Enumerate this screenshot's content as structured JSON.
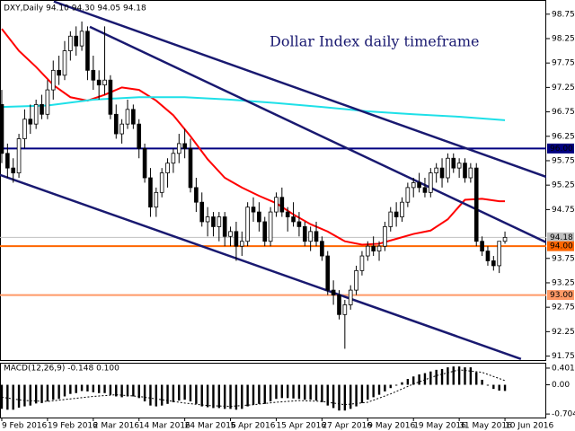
{
  "chart_data": [
    {
      "type": "candlestick",
      "title": "Dollar Index daily timeframe",
      "header": "DXY,Daily 94.10 94.30 94.05 94.18",
      "x": [
        0,
        1,
        2,
        3,
        4,
        5,
        6,
        7,
        8,
        9,
        10,
        11,
        12,
        13,
        14,
        15,
        16,
        17,
        18,
        19,
        20,
        21,
        22,
        23,
        24,
        25,
        26,
        27,
        28,
        29,
        30,
        31,
        32,
        33,
        34,
        35,
        36,
        37,
        38,
        39,
        40,
        41,
        42,
        43,
        44,
        45,
        46,
        47,
        48,
        49,
        50,
        51,
        52,
        53,
        54,
        55,
        56,
        57,
        58,
        59,
        60,
        61,
        62,
        63,
        64,
        65,
        66,
        67,
        68,
        69,
        70,
        71,
        72,
        73,
        74,
        75,
        76,
        77,
        78,
        79,
        80,
        81,
        82,
        83,
        84,
        85,
        86,
        87,
        88
      ],
      "open": [
        96.9,
        95.9,
        95.6,
        95.5,
        96.2,
        96.6,
        96.5,
        96.9,
        96.7,
        97.2,
        97.6,
        97.5,
        98.0,
        98.3,
        98.1,
        98.4,
        97.6,
        97.4,
        97.3,
        97.4,
        96.7,
        96.3,
        96.5,
        96.8,
        96.5,
        96.0,
        95.4,
        94.8,
        95.1,
        95.5,
        95.7,
        95.9,
        96.1,
        96.0,
        95.2,
        94.9,
        94.5,
        94.6,
        94.4,
        94.6,
        94.2,
        94.3,
        94.0,
        94.1,
        94.8,
        94.7,
        94.5,
        94.1,
        94.7,
        95.0,
        94.7,
        94.6,
        94.5,
        94.4,
        94.1,
        94.3,
        94.1,
        93.8,
        93.1,
        93.0,
        92.6,
        92.8,
        93.1,
        93.5,
        93.8,
        94.0,
        93.9,
        94.0,
        94.4,
        94.7,
        94.6,
        94.9,
        95.2,
        95.3,
        95.2,
        95.1,
        95.5,
        95.6,
        95.4,
        95.8,
        95.6,
        95.7,
        95.4,
        95.6,
        94.1,
        93.9,
        93.7,
        93.6,
        94.1
      ],
      "high": [
        97.2,
        96.1,
        95.8,
        96.3,
        96.8,
        96.9,
        97.0,
        97.1,
        97.4,
        97.8,
        97.9,
        98.2,
        98.4,
        98.5,
        98.6,
        98.5,
        97.9,
        97.6,
        98.5,
        97.5,
        96.9,
        96.6,
        97.0,
        96.9,
        96.6,
        96.1,
        95.6,
        95.2,
        95.6,
        95.8,
        96.0,
        96.3,
        96.4,
        96.2,
        95.4,
        95.1,
        94.8,
        94.7,
        94.7,
        94.7,
        94.4,
        94.5,
        94.3,
        94.9,
        95.0,
        94.9,
        94.6,
        94.8,
        95.1,
        95.2,
        94.8,
        94.9,
        94.7,
        94.5,
        94.4,
        94.5,
        94.2,
        93.9,
        93.3,
        93.1,
        92.9,
        93.2,
        93.6,
        93.9,
        94.1,
        94.2,
        94.1,
        94.5,
        94.8,
        94.9,
        95.0,
        95.3,
        95.4,
        95.5,
        95.4,
        95.6,
        95.7,
        95.8,
        95.9,
        95.9,
        95.8,
        95.8,
        95.7,
        95.7,
        94.2,
        94.0,
        93.8,
        94.1,
        94.3
      ],
      "low": [
        95.7,
        95.4,
        95.3,
        95.4,
        96.0,
        96.3,
        96.4,
        96.6,
        96.6,
        97.0,
        97.3,
        97.4,
        97.8,
        97.9,
        98.0,
        97.4,
        97.2,
        97.0,
        97.1,
        96.6,
        96.2,
        96.1,
        96.4,
        96.4,
        95.8,
        95.3,
        94.6,
        94.6,
        95.0,
        95.2,
        95.5,
        95.7,
        95.8,
        95.1,
        94.7,
        94.4,
        94.2,
        94.2,
        94.1,
        94.0,
        94.0,
        93.7,
        93.8,
        94.0,
        94.5,
        94.3,
        94.0,
        94.0,
        94.6,
        94.6,
        94.3,
        94.4,
        94.2,
        94.0,
        93.9,
        94.0,
        93.7,
        93.0,
        92.8,
        92.5,
        91.9,
        92.7,
        93.0,
        93.4,
        93.7,
        93.8,
        93.7,
        93.9,
        94.3,
        94.4,
        94.5,
        94.8,
        95.0,
        95.1,
        95.0,
        95.0,
        95.3,
        95.2,
        95.3,
        95.5,
        95.4,
        95.3,
        95.3,
        94.0,
        93.8,
        93.6,
        93.5,
        93.45,
        94.05
      ],
      "close": [
        95.9,
        95.6,
        95.5,
        96.2,
        96.6,
        96.5,
        96.9,
        96.7,
        97.2,
        97.6,
        97.5,
        98.0,
        98.3,
        98.1,
        98.4,
        97.6,
        97.4,
        97.3,
        97.4,
        96.7,
        96.3,
        96.5,
        96.8,
        96.5,
        96.0,
        95.4,
        94.8,
        95.1,
        95.5,
        95.7,
        95.9,
        96.1,
        96.0,
        95.2,
        94.9,
        94.5,
        94.6,
        94.4,
        94.6,
        94.2,
        94.3,
        94.0,
        94.1,
        94.8,
        94.7,
        94.5,
        94.1,
        94.7,
        95.0,
        94.7,
        94.6,
        94.5,
        94.4,
        94.1,
        94.3,
        94.1,
        93.8,
        93.1,
        93.0,
        92.6,
        92.8,
        93.1,
        93.5,
        93.8,
        94.0,
        93.9,
        94.0,
        94.4,
        94.7,
        94.6,
        94.9,
        95.2,
        95.3,
        95.2,
        95.1,
        95.5,
        95.6,
        95.4,
        95.8,
        95.6,
        95.7,
        95.4,
        95.6,
        94.1,
        93.9,
        93.7,
        93.6,
        94.1,
        94.18
      ],
      "up_color": "#ffffff",
      "down_color": "#000000",
      "outline_color": "#000000",
      "xlim": [
        -0.31,
        95.22
      ],
      "ylim": [
        91.65,
        99.04
      ],
      "xticks": [
        {
          "value": 0,
          "label": "9 Feb 2016"
        },
        {
          "value": 8,
          "label": "19 Feb 2016"
        },
        {
          "value": 16,
          "label": "2 Mar 2016"
        },
        {
          "value": 24,
          "label": "14 Mar 2016"
        },
        {
          "value": 32,
          "label": "24 Mar 2016"
        },
        {
          "value": 40,
          "label": "5 Apr 2016"
        },
        {
          "value": 48,
          "label": "15 Apr 2016"
        },
        {
          "value": 56,
          "label": "27 Apr 2016"
        },
        {
          "value": 64,
          "label": "9 May 2016"
        },
        {
          "value": 72,
          "label": "19 May 2016"
        },
        {
          "value": 80,
          "label": "31 May 2016"
        },
        {
          "value": 88,
          "label": "10 Jun 2016"
        }
      ],
      "yticks": [
        98.75,
        98.25,
        97.75,
        97.25,
        96.75,
        96.25,
        95.75,
        95.25,
        94.75,
        93.75,
        93.25,
        92.75,
        92.25,
        91.75
      ],
      "levels": [
        {
          "value": 96,
          "label": "96.00",
          "color": "#000080",
          "text_color": "#ffffff"
        },
        {
          "value": 94,
          "label": "94.00",
          "color": "#ff6600",
          "text_color": "#ffffff"
        },
        {
          "value": 93,
          "label": "93.00",
          "color": "#ff9966",
          "text_color": "#ffffff"
        }
      ],
      "price_line": {
        "value": 94.18,
        "label": "94.18",
        "color": "#c0c0c0",
        "text_color": "#000000"
      },
      "moving_averages": [
        {
          "color": "#ff0000",
          "x": [
            0,
            3,
            6,
            9,
            12,
            15,
            18,
            21,
            24,
            27,
            30,
            33,
            36,
            39,
            42,
            45,
            48,
            51,
            54,
            57,
            60,
            63,
            66,
            69,
            72,
            75,
            78,
            81,
            84,
            87,
            88
          ],
          "values": [
            98.45,
            98.0,
            97.67,
            97.3,
            97.05,
            96.98,
            97.1,
            97.25,
            97.2,
            96.98,
            96.68,
            96.25,
            95.78,
            95.4,
            95.2,
            95.03,
            94.88,
            94.65,
            94.45,
            94.3,
            94.1,
            94.03,
            94.05,
            94.15,
            94.25,
            94.32,
            94.55,
            94.95,
            94.97,
            94.92,
            94.92
          ]
        },
        {
          "color": "#1ee0e8",
          "x": [
            0,
            8,
            16,
            24,
            32,
            40,
            48,
            56,
            64,
            72,
            80,
            88
          ],
          "values": [
            96.85,
            96.88,
            97.0,
            97.05,
            97.05,
            97.0,
            96.93,
            96.85,
            96.76,
            96.7,
            96.65,
            96.58
          ]
        }
      ],
      "trendline_color": "#191970",
      "trendlines": [
        {
          "x": [
            9.1,
            95.2
          ],
          "y": [
            99.01,
            95.42
          ]
        },
        {
          "x": [
            15.4,
            95.2
          ],
          "y": [
            98.49,
            94.08
          ]
        },
        {
          "x": [
            -0.31,
            90.8
          ],
          "y": [
            95.46,
            91.69
          ]
        }
      ]
    },
    {
      "type": "macd",
      "label": "MACD(12,26,9) -0.148 0.100",
      "color": "#000000",
      "x": [
        0,
        1,
        2,
        3,
        4,
        5,
        6,
        7,
        8,
        9,
        10,
        11,
        12,
        13,
        14,
        15,
        16,
        17,
        18,
        19,
        20,
        21,
        22,
        23,
        24,
        25,
        26,
        27,
        28,
        29,
        30,
        31,
        32,
        33,
        34,
        35,
        36,
        37,
        38,
        39,
        40,
        41,
        42,
        43,
        44,
        45,
        46,
        47,
        48,
        49,
        50,
        51,
        52,
        53,
        54,
        55,
        56,
        57,
        58,
        59,
        60,
        61,
        62,
        63,
        64,
        65,
        66,
        67,
        68,
        69,
        70,
        71,
        72,
        73,
        74,
        75,
        76,
        77,
        78,
        79,
        80,
        81,
        82,
        83,
        84,
        85,
        86,
        87,
        88
      ],
      "values": [
        -0.58,
        -0.6,
        -0.6,
        -0.55,
        -0.52,
        -0.5,
        -0.45,
        -0.44,
        -0.4,
        -0.36,
        -0.34,
        -0.28,
        -0.22,
        -0.2,
        -0.15,
        -0.16,
        -0.18,
        -0.2,
        -0.2,
        -0.24,
        -0.28,
        -0.3,
        -0.28,
        -0.28,
        -0.32,
        -0.4,
        -0.5,
        -0.52,
        -0.5,
        -0.46,
        -0.42,
        -0.38,
        -0.36,
        -0.4,
        -0.46,
        -0.52,
        -0.54,
        -0.56,
        -0.56,
        -0.58,
        -0.58,
        -0.6,
        -0.58,
        -0.52,
        -0.48,
        -0.46,
        -0.46,
        -0.4,
        -0.34,
        -0.32,
        -0.32,
        -0.33,
        -0.34,
        -0.36,
        -0.36,
        -0.38,
        -0.42,
        -0.5,
        -0.56,
        -0.62,
        -0.62,
        -0.58,
        -0.52,
        -0.44,
        -0.36,
        -0.3,
        -0.24,
        -0.16,
        -0.08,
        -0.02,
        0.06,
        0.14,
        0.2,
        0.25,
        0.28,
        0.32,
        0.36,
        0.38,
        0.42,
        0.44,
        0.44,
        0.42,
        0.42,
        0.3,
        0.12,
        -0.02,
        -0.1,
        -0.14,
        -0.148
      ],
      "signal": {
        "color": "#000000",
        "x": [
          0,
          4,
          8,
          12,
          16,
          20,
          24,
          28,
          32,
          36,
          40,
          44,
          48,
          52,
          56,
          60,
          64,
          68,
          72,
          76,
          80,
          84,
          88
        ],
        "values": [
          -0.3,
          -0.38,
          -0.4,
          -0.34,
          -0.28,
          -0.24,
          -0.28,
          -0.36,
          -0.44,
          -0.5,
          -0.52,
          -0.48,
          -0.42,
          -0.38,
          -0.4,
          -0.48,
          -0.42,
          -0.22,
          0.02,
          0.22,
          0.36,
          0.3,
          0.1
        ]
      },
      "xlim": [
        -0.31,
        95.22
      ],
      "ylim": [
        -0.81,
        0.53
      ],
      "yticks": [
        0.401,
        {
          "value": 0,
          "label": "0.00"
        },
        -0.704
      ]
    }
  ]
}
